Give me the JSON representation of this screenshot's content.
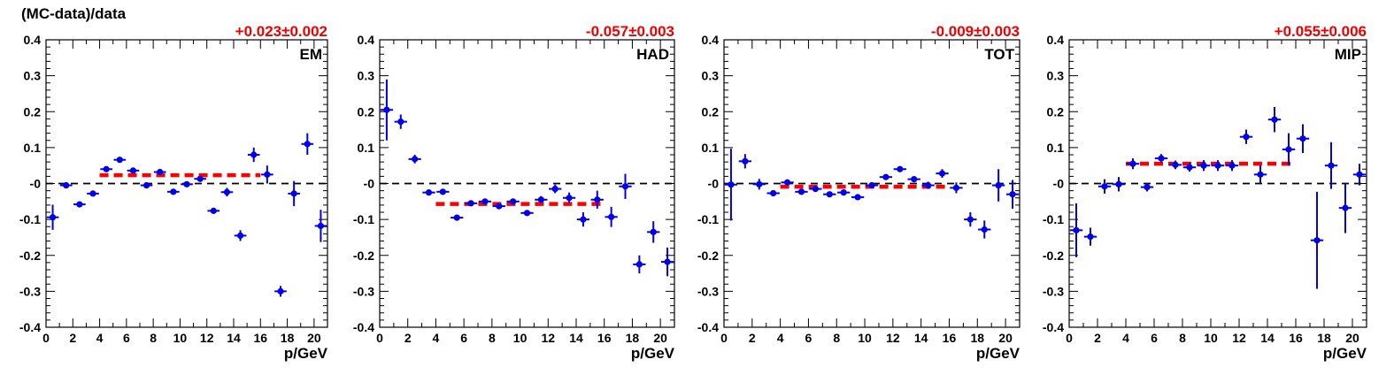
{
  "figure": {
    "ylabel": "(MC-data)/data"
  },
  "chart_data": [
    {
      "type": "scatter",
      "panel_label": "EM",
      "fit_label": "+0.023±0.002",
      "fit_value": 0.023,
      "fit_range": [
        4,
        16
      ],
      "xlabel": "p/GeV",
      "ylabel": "(MC-data)/data",
      "xlim": [
        0,
        21
      ],
      "ylim": [
        -0.4,
        0.4
      ],
      "xticks": [
        "0",
        "2",
        "4",
        "6",
        "8",
        "10",
        "12",
        "14",
        "16",
        "18",
        "20"
      ],
      "yticks": [
        "-0.4",
        "-0.3",
        "-0.2",
        "-0.1",
        "-0",
        "0.1",
        "0.2",
        "0.3",
        "0.4"
      ],
      "points": [
        {
          "x": 0.5,
          "y": -0.094,
          "err": 0.035
        },
        {
          "x": 1.5,
          "y": -0.005,
          "err": 0.006
        },
        {
          "x": 2.5,
          "y": -0.058,
          "err": 0.005
        },
        {
          "x": 3.5,
          "y": -0.028,
          "err": 0.005
        },
        {
          "x": 4.5,
          "y": 0.04,
          "err": 0.005
        },
        {
          "x": 5.5,
          "y": 0.066,
          "err": 0.005
        },
        {
          "x": 6.5,
          "y": 0.036,
          "err": 0.005
        },
        {
          "x": 7.5,
          "y": -0.005,
          "err": 0.005
        },
        {
          "x": 8.5,
          "y": 0.032,
          "err": 0.005
        },
        {
          "x": 9.5,
          "y": -0.023,
          "err": 0.005
        },
        {
          "x": 10.5,
          "y": -0.002,
          "err": 0.006
        },
        {
          "x": 11.5,
          "y": 0.013,
          "err": 0.007
        },
        {
          "x": 12.5,
          "y": -0.076,
          "err": 0.008
        },
        {
          "x": 13.5,
          "y": -0.024,
          "err": 0.012
        },
        {
          "x": 14.5,
          "y": -0.145,
          "err": 0.015
        },
        {
          "x": 15.5,
          "y": 0.08,
          "err": 0.02
        },
        {
          "x": 16.5,
          "y": 0.025,
          "err": 0.025
        },
        {
          "x": 17.5,
          "y": -0.3,
          "err": 0.015
        },
        {
          "x": 18.5,
          "y": -0.028,
          "err": 0.035
        },
        {
          "x": 19.5,
          "y": 0.11,
          "err": 0.03
        },
        {
          "x": 20.5,
          "y": -0.118,
          "err": 0.045
        }
      ]
    },
    {
      "type": "scatter",
      "panel_label": "HAD",
      "fit_label": "-0.057±0.003",
      "fit_value": -0.057,
      "fit_range": [
        4,
        16
      ],
      "xlabel": "p/GeV",
      "ylabel": "",
      "xlim": [
        0,
        21
      ],
      "ylim": [
        -0.4,
        0.4
      ],
      "xticks": [
        "0",
        "2",
        "4",
        "6",
        "8",
        "10",
        "12",
        "14",
        "16",
        "18",
        "20"
      ],
      "yticks": [
        "-0.4",
        "-0.3",
        "-0.2",
        "-0.1",
        "-0",
        "0.1",
        "0.2",
        "0.3",
        "0.4"
      ],
      "points": [
        {
          "x": 0.5,
          "y": 0.205,
          "err": 0.085
        },
        {
          "x": 1.5,
          "y": 0.172,
          "err": 0.02
        },
        {
          "x": 2.5,
          "y": 0.068,
          "err": 0.012
        },
        {
          "x": 3.5,
          "y": -0.025,
          "err": 0.008
        },
        {
          "x": 4.5,
          "y": -0.023,
          "err": 0.008
        },
        {
          "x": 5.5,
          "y": -0.095,
          "err": 0.006
        },
        {
          "x": 6.5,
          "y": -0.055,
          "err": 0.006
        },
        {
          "x": 7.5,
          "y": -0.05,
          "err": 0.006
        },
        {
          "x": 8.5,
          "y": -0.063,
          "err": 0.006
        },
        {
          "x": 9.5,
          "y": -0.05,
          "err": 0.007
        },
        {
          "x": 10.5,
          "y": -0.082,
          "err": 0.008
        },
        {
          "x": 11.5,
          "y": -0.045,
          "err": 0.01
        },
        {
          "x": 12.5,
          "y": -0.015,
          "err": 0.012
        },
        {
          "x": 13.5,
          "y": -0.04,
          "err": 0.015
        },
        {
          "x": 14.5,
          "y": -0.1,
          "err": 0.02
        },
        {
          "x": 15.5,
          "y": -0.045,
          "err": 0.025
        },
        {
          "x": 16.5,
          "y": -0.093,
          "err": 0.028
        },
        {
          "x": 17.5,
          "y": -0.008,
          "err": 0.035
        },
        {
          "x": 18.5,
          "y": -0.225,
          "err": 0.025
        },
        {
          "x": 19.5,
          "y": -0.135,
          "err": 0.03
        },
        {
          "x": 20.5,
          "y": -0.218,
          "err": 0.04
        }
      ]
    },
    {
      "type": "scatter",
      "panel_label": "TOT",
      "fit_label": "-0.009±0.003",
      "fit_value": -0.009,
      "fit_range": [
        4,
        16
      ],
      "xlabel": "p/GeV",
      "ylabel": "",
      "xlim": [
        0,
        21
      ],
      "ylim": [
        -0.4,
        0.4
      ],
      "xticks": [
        "0",
        "2",
        "4",
        "6",
        "8",
        "10",
        "12",
        "14",
        "16",
        "18",
        "20"
      ],
      "yticks": [
        "-0.4",
        "-0.3",
        "-0.2",
        "-0.1",
        "-0",
        "0.1",
        "0.2",
        "0.3",
        "0.4"
      ],
      "points": [
        {
          "x": 0.5,
          "y": -0.003,
          "err": 0.1
        },
        {
          "x": 1.5,
          "y": 0.062,
          "err": 0.02
        },
        {
          "x": 2.5,
          "y": -0.002,
          "err": 0.015
        },
        {
          "x": 3.5,
          "y": -0.027,
          "err": 0.008
        },
        {
          "x": 4.5,
          "y": 0.003,
          "err": 0.006
        },
        {
          "x": 5.5,
          "y": -0.023,
          "err": 0.005
        },
        {
          "x": 6.5,
          "y": -0.015,
          "err": 0.005
        },
        {
          "x": 7.5,
          "y": -0.03,
          "err": 0.005
        },
        {
          "x": 8.5,
          "y": -0.025,
          "err": 0.006
        },
        {
          "x": 9.5,
          "y": -0.038,
          "err": 0.006
        },
        {
          "x": 10.5,
          "y": -0.005,
          "err": 0.006
        },
        {
          "x": 11.5,
          "y": 0.018,
          "err": 0.006
        },
        {
          "x": 12.5,
          "y": 0.04,
          "err": 0.008
        },
        {
          "x": 13.5,
          "y": 0.012,
          "err": 0.008
        },
        {
          "x": 14.5,
          "y": -0.005,
          "err": 0.01
        },
        {
          "x": 15.5,
          "y": 0.028,
          "err": 0.012
        },
        {
          "x": 16.5,
          "y": -0.012,
          "err": 0.015
        },
        {
          "x": 17.5,
          "y": -0.1,
          "err": 0.02
        },
        {
          "x": 18.5,
          "y": -0.128,
          "err": 0.025
        },
        {
          "x": 19.5,
          "y": -0.005,
          "err": 0.045
        },
        {
          "x": 20.5,
          "y": -0.03,
          "err": 0.04
        }
      ]
    },
    {
      "type": "scatter",
      "panel_label": "MIP",
      "fit_label": "+0.055±0.006",
      "fit_value": 0.055,
      "fit_range": [
        4,
        16
      ],
      "xlabel": "p/GeV",
      "ylabel": "",
      "xlim": [
        0,
        21
      ],
      "ylim": [
        -0.4,
        0.4
      ],
      "xticks": [
        "0",
        "2",
        "4",
        "6",
        "8",
        "10",
        "12",
        "14",
        "16",
        "18",
        "20"
      ],
      "yticks": [
        "-0.4",
        "-0.3",
        "-0.2",
        "-0.1",
        "-0",
        "0.1",
        "0.2",
        "0.3",
        "0.4"
      ],
      "points": [
        {
          "x": 0.5,
          "y": -0.13,
          "err": 0.075
        },
        {
          "x": 1.5,
          "y": -0.148,
          "err": 0.025
        },
        {
          "x": 2.5,
          "y": -0.008,
          "err": 0.02
        },
        {
          "x": 3.5,
          "y": -0.002,
          "err": 0.02
        },
        {
          "x": 4.5,
          "y": 0.055,
          "err": 0.015
        },
        {
          "x": 5.5,
          "y": -0.01,
          "err": 0.012
        },
        {
          "x": 6.5,
          "y": 0.07,
          "err": 0.012
        },
        {
          "x": 7.5,
          "y": 0.052,
          "err": 0.012
        },
        {
          "x": 8.5,
          "y": 0.045,
          "err": 0.012
        },
        {
          "x": 9.5,
          "y": 0.05,
          "err": 0.015
        },
        {
          "x": 10.5,
          "y": 0.05,
          "err": 0.015
        },
        {
          "x": 11.5,
          "y": 0.05,
          "err": 0.015
        },
        {
          "x": 12.5,
          "y": 0.13,
          "err": 0.02
        },
        {
          "x": 13.5,
          "y": 0.025,
          "err": 0.025
        },
        {
          "x": 14.5,
          "y": 0.178,
          "err": 0.035
        },
        {
          "x": 15.5,
          "y": 0.095,
          "err": 0.045
        },
        {
          "x": 16.5,
          "y": 0.125,
          "err": 0.04
        },
        {
          "x": 17.5,
          "y": -0.158,
          "err": 0.135
        },
        {
          "x": 18.5,
          "y": 0.05,
          "err": 0.065
        },
        {
          "x": 19.5,
          "y": -0.068,
          "err": 0.07
        },
        {
          "x": 20.5,
          "y": 0.025,
          "err": 0.03
        }
      ]
    }
  ],
  "colors": {
    "points": "#0000ee",
    "fit": "#ff0000",
    "fit_text": "#ee0000",
    "zero_line": "#000000",
    "axes": "#000000"
  }
}
